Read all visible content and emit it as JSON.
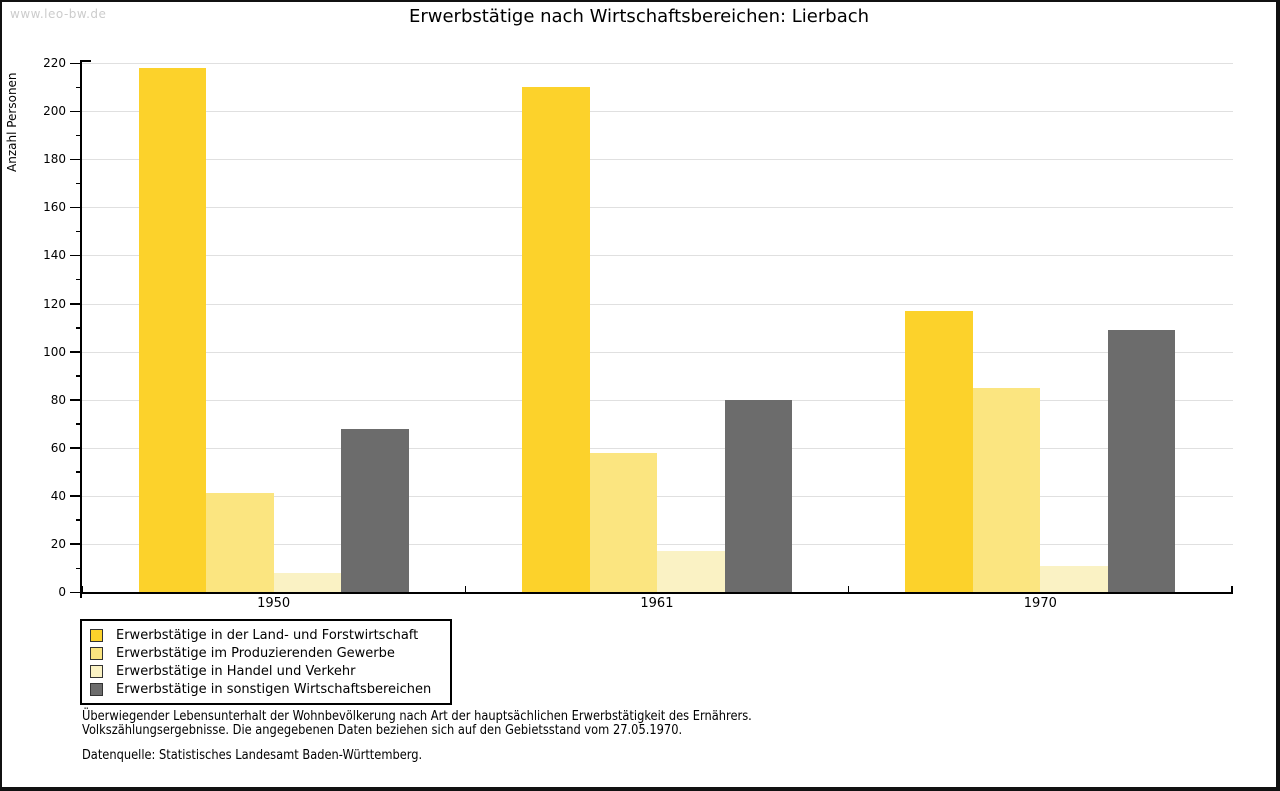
{
  "watermark": "www.leo-bw.de",
  "chart_data": {
    "type": "bar",
    "title": "Erwerbstätige nach Wirtschaftsbereichen: Lierbach",
    "ylabel": "Anzahl Personen",
    "xlabel": "",
    "categories": [
      "1950",
      "1961",
      "1970"
    ],
    "series": [
      {
        "name": "Erwerbstätige in der Land- und Forstwirtschaft",
        "color": "#FCD22B",
        "values": [
          218,
          210,
          117
        ]
      },
      {
        "name": "Erwerbstätige im Produzierenden Gewerbe",
        "color": "#FBE580",
        "values": [
          41,
          58,
          85
        ]
      },
      {
        "name": "Erwerbstätige in Handel und Verkehr",
        "color": "#FAF2C4",
        "values": [
          8,
          17,
          11
        ]
      },
      {
        "name": "Erwerbstätige in sonstigen Wirtschaftsbereichen",
        "color": "#6C6C6C",
        "values": [
          68,
          80,
          109
        ]
      }
    ],
    "ylim": [
      0,
      220
    ],
    "ytick_step": 20,
    "ytick_minor_step": 10,
    "grid": true,
    "gridline_color": "#e0e0e0",
    "legend_position": "bottom-left"
  },
  "footer": {
    "line1": "Überwiegender Lebensunterhalt der Wohnbevölkerung nach Art der hauptsächlichen Erwerbstätigkeit des Ernährers.",
    "line2": "Volkszählungsergebnisse. Die angegebenen Daten beziehen sich auf den Gebietsstand vom 27.05.1970.",
    "source": "Datenquelle: Statistisches Landesamt Baden-Württemberg."
  }
}
